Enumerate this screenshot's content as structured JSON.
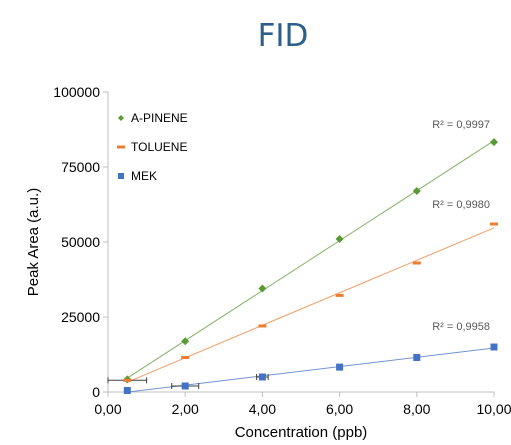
{
  "chart_data": {
    "type": "scatter",
    "title": "FID",
    "xlabel": "Concentration (ppb)",
    "ylabel": "Peak Area (a.u.)",
    "xlim": [
      0,
      10
    ],
    "ylim": [
      0,
      100000
    ],
    "x_ticks": [
      "0,00",
      "2,00",
      "4,00",
      "6,00",
      "8,00",
      "10,00"
    ],
    "y_ticks": [
      "0",
      "25000",
      "50000",
      "75000",
      "100000"
    ],
    "legend_position": "top-left",
    "trendlines": true,
    "series": [
      {
        "name": "A-PINENE",
        "color": "#5a9a32",
        "marker": "diamond",
        "x": [
          0.5,
          2,
          4,
          6,
          8,
          10
        ],
        "y": [
          4200,
          16900,
          34500,
          51000,
          67000,
          83300
        ],
        "r2_label": "R² = 0,9997"
      },
      {
        "name": "TOLUENE",
        "color": "#ed7d31",
        "marker": "dash",
        "x": [
          0.5,
          2,
          4,
          6,
          8,
          10
        ],
        "y": [
          3900,
          11500,
          22000,
          32200,
          43000,
          56000
        ],
        "r2_label": "R² = 0,9980"
      },
      {
        "name": "MEK",
        "color": "#4472c4",
        "marker": "square",
        "x": [
          0.5,
          2,
          4,
          6,
          8,
          10
        ],
        "y": [
          500,
          2000,
          5000,
          8300,
          11500,
          15000
        ],
        "r2_label": "R² = 0,9958"
      }
    ]
  }
}
